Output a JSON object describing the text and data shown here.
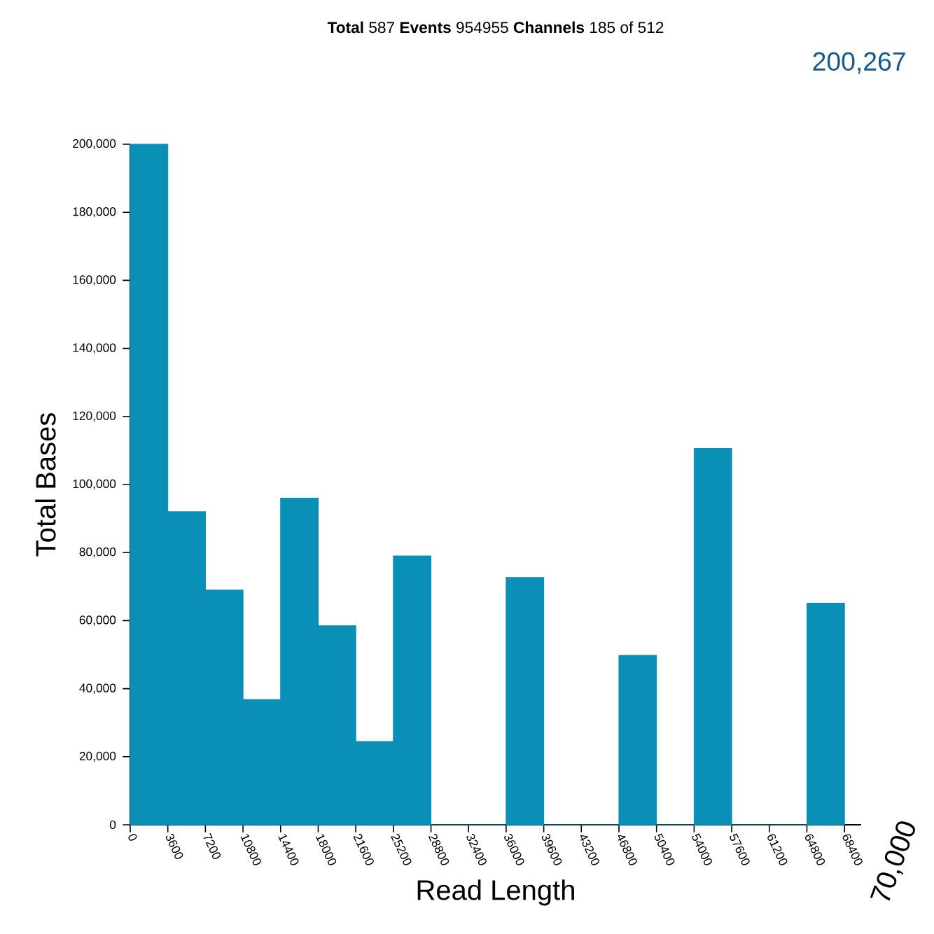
{
  "chart_data": {
    "type": "histogram",
    "title": "**Total** 587    **Events** 954955    **Channels** 185 of 512",
    "xlabel": "Read Length",
    "ylabel": "Total Bases",
    "annotations": [
      "200,267",
      "70,000"
    ],
    "bins": [
      0,
      3600,
      7200,
      10800,
      14400,
      18000,
      21600,
      25200,
      28800,
      32400,
      36000,
      39600,
      43200,
      46800,
      50400,
      54000,
      57600,
      61200,
      64800,
      68400
    ],
    "values": [
      200000,
      92000,
      69000,
      36800,
      96000,
      58500,
      24500,
      79000,
      0,
      0,
      72700,
      0,
      0,
      49800,
      0,
      110600,
      0,
      0,
      65100
    ],
    "color": "#0a8fb6",
    "xlim": [
      0,
      70000
    ],
    "xticks": [
      0,
      3600,
      7200,
      10800,
      14400,
      18000,
      21600,
      25200,
      28800,
      32400,
      36000,
      39600,
      43200,
      46800,
      50400,
      54000,
      57600,
      61200,
      64800,
      68400
    ],
    "ylim": [
      0,
      200000
    ],
    "yticks": [
      {
        "value": 0,
        "label": "0"
      },
      {
        "value": 20000,
        "label": "20,000"
      },
      {
        "value": 40000,
        "label": "40,000"
      },
      {
        "value": 60000,
        "label": "60,000"
      },
      {
        "value": 80000,
        "label": "80,000"
      },
      {
        "value": 100000,
        "label": "100,000"
      },
      {
        "value": 120000,
        "label": "120,000"
      },
      {
        "value": 140000,
        "label": "140,000"
      },
      {
        "value": 160000,
        "label": "160,000"
      },
      {
        "value": 180000,
        "label": "180,000"
      },
      {
        "value": 200000,
        "label": "200,000"
      }
    ]
  }
}
